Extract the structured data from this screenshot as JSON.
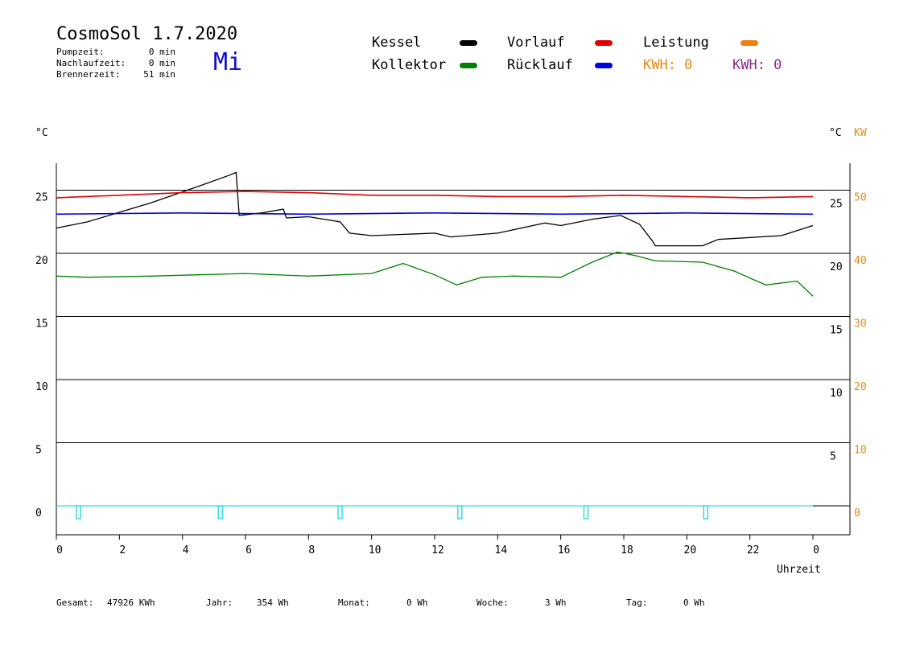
{
  "header": {
    "title": "CosmoSol 1.7.2020",
    "weekday": "Mi",
    "stats": [
      {
        "label": "Pumpzeit:",
        "value": "0 min"
      },
      {
        "label": "Nachlaufzeit:",
        "value": "0 min"
      },
      {
        "label": "Brennerzeit:",
        "value": "51 min"
      }
    ]
  },
  "legend": {
    "kessel": {
      "label": "Kessel",
      "color": "#000000"
    },
    "kollektor": {
      "label": "Kollektor",
      "color": "#008000"
    },
    "vorlauf": {
      "label": "Vorlauf",
      "color": "#e00000"
    },
    "ruecklauf": {
      "label": "Rücklauf",
      "color": "#0000e0"
    },
    "leistung": {
      "label": "Leistung",
      "color": "#f08010"
    },
    "kwh_left": "KWH: 0",
    "kwh_right": "KWH: 0",
    "kwh_left_color": "#e08a10",
    "kwh_right_color": "#8a2a8a"
  },
  "axes": {
    "left_unit": "°C",
    "right_unit": "°C",
    "right_unit2": "KW",
    "xlabel": "Uhrzeit"
  },
  "footer": [
    {
      "label": "Gesamt:",
      "value": "47926 KWh"
    },
    {
      "label": "Jahr:",
      "value": "354 Wh"
    },
    {
      "label": "Monat:",
      "value": "0 Wh"
    },
    {
      "label": "Woche:",
      "value": "3 Wh"
    },
    {
      "label": "Tag:",
      "value": "0 Wh"
    }
  ],
  "chart_data": {
    "type": "line",
    "x_ticks": [
      "0",
      "2",
      "4",
      "6",
      "8",
      "10",
      "12",
      "14",
      "16",
      "18",
      "20",
      "22",
      "0"
    ],
    "left_ticks": [
      "0",
      "5",
      "10",
      "15",
      "20",
      "25"
    ],
    "right_ticks_c": [
      "5",
      "10",
      "15",
      "20",
      "25"
    ],
    "right_ticks_kw": [
      "0",
      "10",
      "20",
      "30",
      "40",
      "50"
    ],
    "xlim": [
      0,
      24
    ],
    "ylim": [
      -2,
      27
    ],
    "grid": true,
    "series": [
      {
        "name": "Kessel",
        "color": "#000000",
        "x": [
          0,
          1,
          3,
          4.5,
          5.5,
          5.7,
          5.8,
          6.5,
          7.2,
          7.3,
          8,
          9,
          9.3,
          10,
          12,
          12.5,
          14,
          15.5,
          16,
          17,
          17.9,
          18.5,
          18.9,
          19,
          20.5,
          21,
          23,
          24
        ],
        "y": [
          22,
          22.5,
          24,
          25.3,
          26.2,
          26.4,
          23,
          23.2,
          23.5,
          22.8,
          22.9,
          22.5,
          21.6,
          21.4,
          21.6,
          21.3,
          21.6,
          22.4,
          22.2,
          22.7,
          23,
          22.3,
          21,
          20.6,
          20.6,
          21.1,
          21.4,
          22.2
        ]
      },
      {
        "name": "Vorlauf",
        "color": "#e00000",
        "x": [
          0,
          2,
          4,
          6,
          8,
          10,
          12,
          14,
          16,
          18,
          20,
          22,
          24
        ],
        "y": [
          24.4,
          24.6,
          24.8,
          24.9,
          24.8,
          24.6,
          24.6,
          24.5,
          24.5,
          24.6,
          24.5,
          24.4,
          24.5
        ]
      },
      {
        "name": "Rücklauf",
        "color": "#0000e0",
        "x": [
          0,
          4,
          8,
          12,
          16,
          20,
          24
        ],
        "y": [
          23.1,
          23.2,
          23.1,
          23.2,
          23.1,
          23.2,
          23.1
        ]
      },
      {
        "name": "Kollektor",
        "color": "#008000",
        "x": [
          0,
          1,
          3,
          6,
          8,
          10,
          11,
          12,
          12.7,
          13.5,
          14.5,
          16,
          17,
          17.8,
          18.4,
          19,
          20.5,
          21.5,
          22.5,
          23.5,
          24
        ],
        "y": [
          18.2,
          18.1,
          18.2,
          18.4,
          18.2,
          18.4,
          19.2,
          18.3,
          17.5,
          18.1,
          18.2,
          18.1,
          19.3,
          20.1,
          19.8,
          19.4,
          19.3,
          18.6,
          17.5,
          17.8,
          16.6
        ]
      },
      {
        "name": "Leistung",
        "color": "#f08010",
        "x": [
          0,
          24
        ],
        "y": [
          0,
          0
        ]
      }
    ],
    "pump_pulses_x": [
      0.7,
      5.2,
      9.0,
      12.8,
      16.8,
      20.6
    ]
  }
}
